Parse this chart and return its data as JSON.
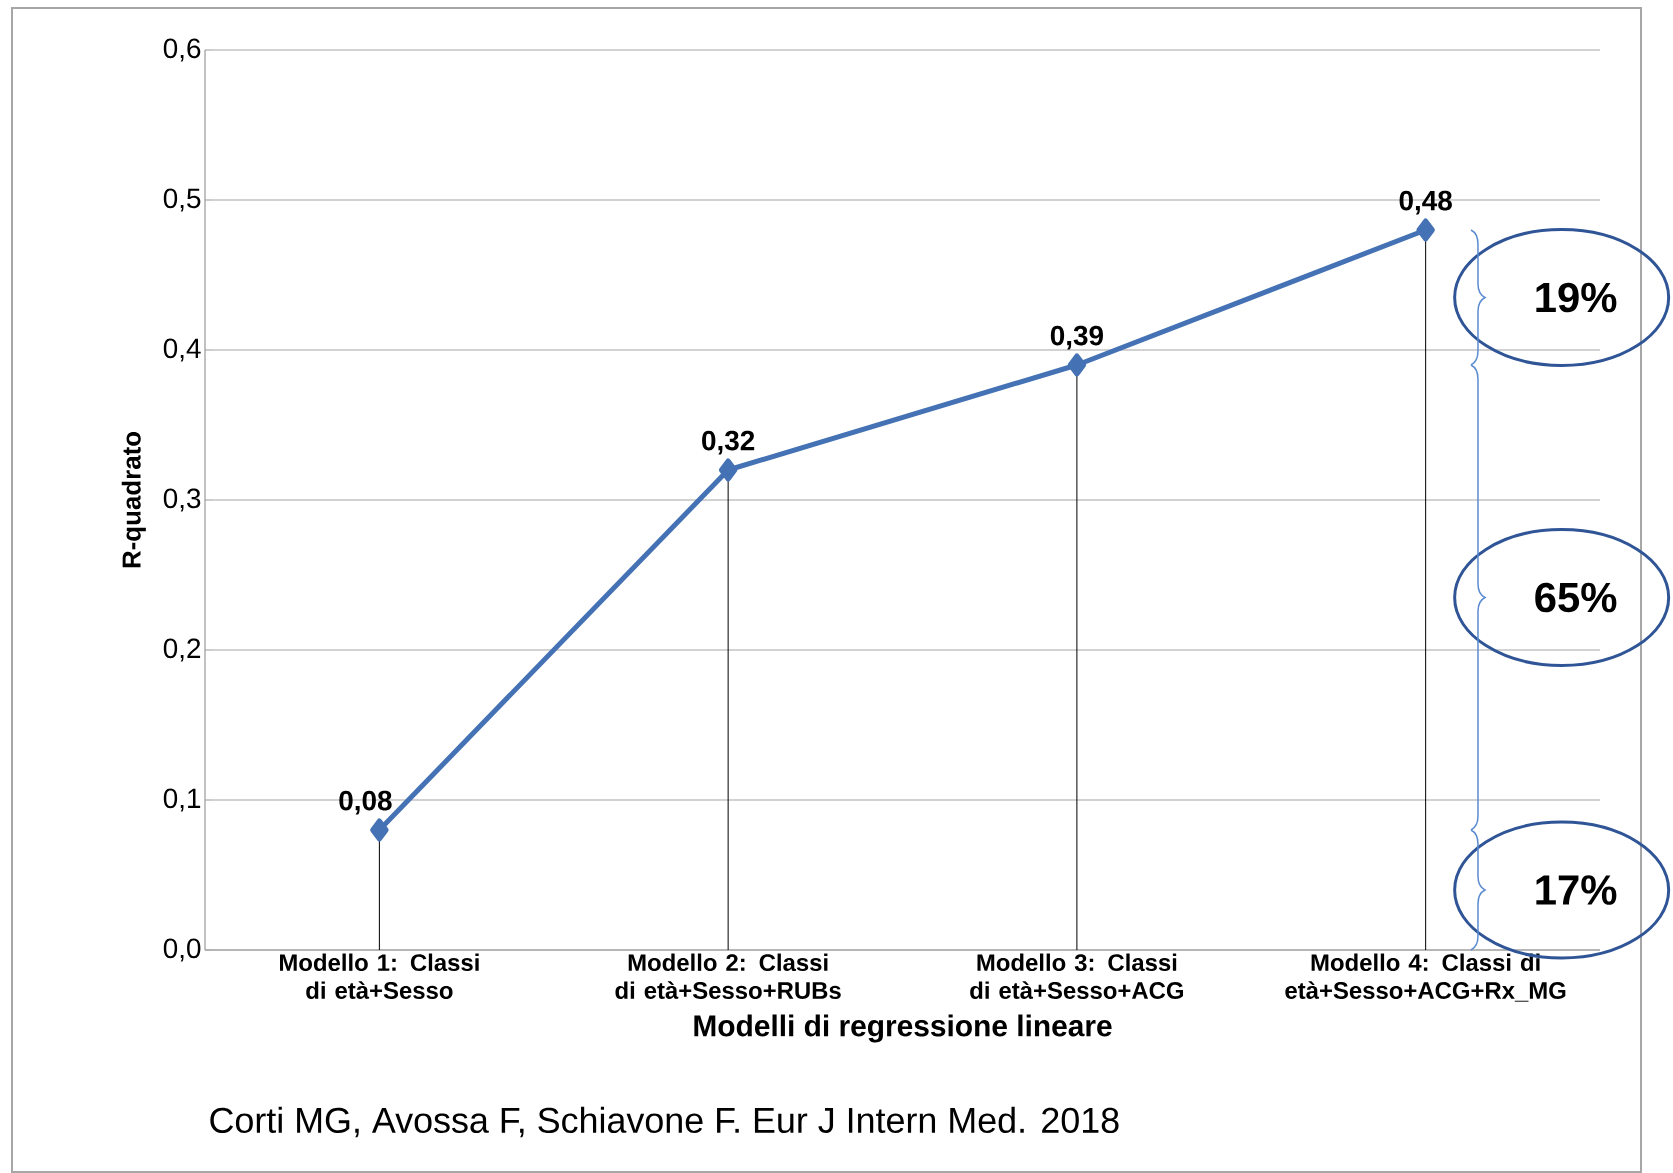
{
  "chart_data": {
    "type": "line",
    "xlabel": "Modelli di regressione lineare",
    "ylabel": "R-quadrato",
    "categories": [
      "Modello 1: Classi di età+Sesso",
      "Modello 2: Classi di età+Sesso+RUBs",
      "Modello 3: Classi di età+Sesso+ACG",
      "Modello 4: Classi di età+Sesso+ACG+Rx_MG"
    ],
    "values": [
      0.08,
      0.32,
      0.39,
      0.48
    ],
    "value_labels": [
      "0,08",
      "0,32",
      "0,39",
      "0,48"
    ],
    "color": "#4472b4",
    "marker": "diamond",
    "ylim": [
      0,
      0.6
    ],
    "yticks": [
      {
        "value": 0,
        "label": "0,0"
      },
      {
        "value": 0.1,
        "label": "0,1"
      },
      {
        "value": 0.2,
        "label": "0,2"
      },
      {
        "value": 0.3,
        "label": "0,3"
      },
      {
        "value": 0.4,
        "label": "0,4"
      },
      {
        "value": 0.5,
        "label": "0,5"
      },
      {
        "value": 0.6,
        "label": "0,6"
      }
    ],
    "grid": "y",
    "annotations": [
      "19%",
      "65%",
      "17%",
      "Corti MG, Avossa F, Schiavone F. Eur J Intern Med. 2018"
    ]
  }
}
